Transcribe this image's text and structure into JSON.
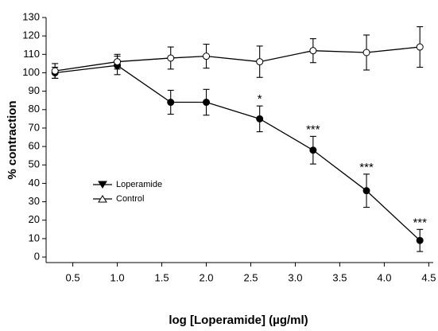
{
  "chart_data": {
    "type": "line",
    "xlabel": "log [Loperamide] (µg/ml)",
    "ylabel": "% contraction",
    "xlim": [
      0.2,
      4.55
    ],
    "ylim": [
      -3,
      130
    ],
    "xticks": [
      0.5,
      {
        "value": 1,
        "label": "1.0"
      },
      1.5,
      {
        "value": 2,
        "label": "2.0"
      },
      2.5,
      {
        "value": 3,
        "label": "3.0"
      },
      3.5,
      {
        "value": 4,
        "label": "4.0"
      },
      4.5
    ],
    "yticks": [
      0,
      10,
      20,
      30,
      40,
      50,
      60,
      70,
      80,
      90,
      100,
      110,
      120,
      130
    ],
    "x": [
      0.3,
      1.0,
      1.6,
      2.0,
      2.6,
      3.2,
      3.8,
      4.4
    ],
    "series": [
      {
        "name": "Loperamide",
        "color": "#000000",
        "marker_fill": "#000000",
        "legend_marker": "down",
        "values": [
          100,
          104,
          84,
          84,
          75,
          58,
          36,
          9
        ],
        "errors": [
          3,
          5,
          6.5,
          7,
          7,
          7.5,
          9,
          6
        ]
      },
      {
        "name": "Control",
        "color": "#000000",
        "marker_fill": "#ffffff",
        "legend_marker": "up",
        "values": [
          101,
          106,
          108,
          109,
          106,
          112,
          111,
          114
        ],
        "errors": [
          4,
          4,
          6,
          6.5,
          8.5,
          6.5,
          9.5,
          11
        ]
      }
    ],
    "annotations": [
      {
        "text": "*",
        "x": 2.6,
        "series": 0
      },
      {
        "text": "***",
        "x": 3.2,
        "series": 0
      },
      {
        "text": "***",
        "x": 3.8,
        "series": 0
      },
      {
        "text": "***",
        "x": 4.4,
        "series": 0
      }
    ]
  }
}
